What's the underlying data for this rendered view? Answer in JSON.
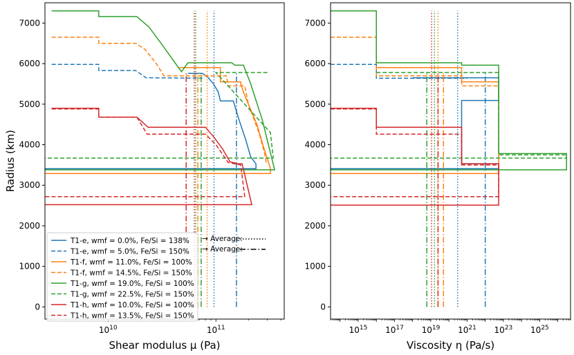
{
  "chart_data": [
    {
      "type": "line",
      "panel": "left",
      "xlabel": "Shear modulus μ (Pa)",
      "ylabel": "Radius (km)",
      "xscale": "log",
      "xlim": [
        2600000000.0,
        430000000000.0
      ],
      "ylim": [
        -300,
        7500
      ],
      "x_ticks": [
        {
          "value": 10000000000.0,
          "label": "10",
          "sup": "10"
        },
        {
          "value": 100000000000.0,
          "label": "10",
          "sup": "11"
        }
      ],
      "y_ticks": [
        0,
        1000,
        2000,
        3000,
        4000,
        5000,
        6000,
        7000
      ],
      "grid": false,
      "legend_position": "lower-left",
      "series": [
        {
          "name": "T1-e, wmf = 0.0%, Fe/Si = 138%",
          "color": "#1f77b4",
          "dash": "solid",
          "points": [
            [
              2000000000.0,
              3410
            ],
            [
              235000000000.0,
              3410
            ],
            [
              235000000000.0,
              3530
            ],
            [
              210000000000.0,
              3700
            ],
            [
              190000000000.0,
              4100
            ],
            [
              160000000000.0,
              4700
            ],
            [
              145000000000.0,
              5080
            ],
            [
              110000000000.0,
              5080
            ],
            [
              105000000000.0,
              5300
            ],
            [
              95000000000.0,
              5500
            ],
            [
              85000000000.0,
              5650
            ],
            [
              75000000000.0,
              5760
            ],
            [
              55000000000.0,
              5760
            ]
          ],
          "average": 96000000000.0
        },
        {
          "name": "T1-e, wmf = 5.0%, Fe/Si = 150%",
          "color": "#1f77b4",
          "dash": "dashed",
          "points": [
            [
              3000000000.0,
              5980
            ],
            [
              8200000000.0,
              5980
            ],
            [
              8200000000.0,
              5830
            ],
            [
              18000000000.0,
              5830
            ],
            [
              22500000000.0,
              5650
            ],
            [
              75000000000.0,
              5640
            ]
          ],
          "average": 155000000000.0
        },
        {
          "name": "T1-f, wmf = 11.0%, Fe/Si = 100%",
          "color": "#ff7f0e",
          "dash": "solid",
          "points": [
            [
              2000000000.0,
              3290
            ],
            [
              320000000000.0,
              3290
            ],
            [
              320000000000.0,
              3420
            ],
            [
              280000000000.0,
              3900
            ],
            [
              240000000000.0,
              4500
            ],
            [
              200000000000.0,
              5000
            ],
            [
              180000000000.0,
              5300
            ],
            [
              170000000000.0,
              5500
            ],
            [
              170000000000.0,
              5550
            ],
            [
              110000000000.0,
              5550
            ],
            [
              110000000000.0,
              5900
            ],
            [
              48000000000.0,
              5900
            ],
            [
              45000000000.0,
              5900
            ]
          ],
          "average": 83000000000.0
        },
        {
          "name": "T1-f, wmf = 14.5%, Fe/Si = 150%",
          "color": "#ff7f0e",
          "dash": "dashed",
          "points": [
            [
              3000000000.0,
              6650
            ],
            [
              8200000000.0,
              6650
            ],
            [
              8200000000.0,
              6500
            ],
            [
              18000000000.0,
              6500
            ],
            [
              22000000000.0,
              6350
            ],
            [
              28000000000.0,
              6000
            ],
            [
              33000000000.0,
              5700
            ],
            [
              125000000000.0,
              5700
            ],
            [
              130000000000.0,
              5450
            ],
            [
              185000000000.0,
              5450
            ],
            [
              200000000000.0,
              5000
            ],
            [
              250000000000.0,
              4300
            ],
            [
              280000000000.0,
              3830
            ],
            [
              295000000000.0,
              3530
            ]
          ],
          "average": 68000000000.0
        },
        {
          "name": "T1-g, wmf = 19.0%, Fe/Si = 100%",
          "color": "#2ca02c",
          "dash": "solid",
          "points": [
            [
              3000000000.0,
              7300
            ],
            [
              8200000000.0,
              7300
            ],
            [
              8200000000.0,
              7160
            ],
            [
              18500000000.0,
              7160
            ],
            [
              24000000000.0,
              6900
            ],
            [
              32000000000.0,
              6450
            ],
            [
              45000000000.0,
              5900
            ],
            [
              48000000000.0,
              5800
            ],
            [
              55000000000.0,
              6020
            ],
            [
              140000000000.0,
              6020
            ],
            [
              150000000000.0,
              5960
            ],
            [
              180000000000.0,
              5960
            ],
            [
              210000000000.0,
              5500
            ],
            [
              270000000000.0,
              4600
            ],
            [
              320000000000.0,
              3800
            ],
            [
              350000000000.0,
              3380
            ],
            [
              2000000000.0,
              3380
            ]
          ],
          "average": 65000000000.0
        },
        {
          "name": "T1-g, wmf = 22.5%, Fe/Si = 150%",
          "color": "#2ca02c",
          "dash": "dashed",
          "points": [
            [
              300000000000.0,
              5780
            ],
            [
              100000000000.0,
              5780
            ],
            [
              320000000000.0,
              4300
            ],
            [
              340000000000.0,
              3670
            ],
            [
              2000000000.0,
              3670
            ]
          ],
          "average": 73000000000.0
        },
        {
          "name": "T1-h, wmf = 10.0%, Fe/Si = 100%",
          "color": "#d62728",
          "dash": "solid",
          "points": [
            [
              3000000000.0,
              4900
            ],
            [
              8200000000.0,
              4900
            ],
            [
              8200000000.0,
              4680
            ],
            [
              18500000000.0,
              4680
            ],
            [
              23500000000.0,
              4430
            ],
            [
              80000000000.0,
              4430
            ],
            [
              95000000000.0,
              4200
            ],
            [
              115000000000.0,
              3900
            ],
            [
              135000000000.0,
              3580
            ],
            [
              160000000000.0,
              3530
            ],
            [
              175000000000.0,
              3530
            ],
            [
              215000000000.0,
              2520
            ],
            [
              2000000000.0,
              2520
            ]
          ],
          "average": 63000000000.0
        },
        {
          "name": "T1-h, wmf = 13.5%, Fe/Si = 150%",
          "color": "#d62728",
          "dash": "dashed",
          "points": [
            [
              3000000000.0,
              4880
            ],
            [
              8200000000.0,
              4880
            ],
            [
              8200000000.0,
              4680
            ],
            [
              18500000000.0,
              4680
            ],
            [
              23000000000.0,
              4260
            ],
            [
              80000000000.0,
              4260
            ],
            [
              100000000000.0,
              4000
            ],
            [
              130000000000.0,
              3560
            ],
            [
              170000000000.0,
              3500
            ],
            [
              185000000000.0,
              2720
            ],
            [
              2000000000.0,
              2720
            ]
          ],
          "average": 53000000000.0
        }
      ],
      "average_legend": [
        {
          "label": "Average:",
          "dash": "dotted"
        },
        {
          "label": "Average:",
          "dash": "dashdot"
        }
      ]
    },
    {
      "type": "line",
      "panel": "right",
      "xlabel": "Viscosity η (Pa/s)",
      "ylabel": "",
      "xscale": "log",
      "xlim": [
        30000000000000.0,
        5e+26
      ],
      "ylim": [
        -300,
        7500
      ],
      "x_ticks": [
        {
          "value": 1000000000000000.0,
          "label": "10",
          "sup": "15"
        },
        {
          "value": 1e+17,
          "label": "10",
          "sup": "17"
        },
        {
          "value": 1e+19,
          "label": "10",
          "sup": "19"
        },
        {
          "value": 1e+21,
          "label": "10",
          "sup": "21"
        },
        {
          "value": 1e+23,
          "label": "10",
          "sup": "23"
        },
        {
          "value": 1e+25,
          "label": "10",
          "sup": "25"
        }
      ],
      "y_ticks": [
        0,
        1000,
        2000,
        3000,
        4000,
        5000,
        6000,
        7000
      ],
      "grid": false,
      "series": [
        {
          "name": "T1-e, wmf = 0.0%, Fe/Si = 138%",
          "color": "#1f77b4",
          "dash": "solid",
          "points": [
            [
              10000000000000.0,
              3410
            ],
            [
              5.5e+22,
              3410
            ],
            [
              5.5e+22,
              3530
            ],
            [
              5e+20,
              3530
            ],
            [
              5e+20,
              5090
            ],
            [
              5.5e+22,
              5090
            ],
            [
              5.5e+22,
              5650
            ],
            [
              1e+18,
              5650
            ]
          ],
          "average": 3e+20
        },
        {
          "name": "T1-e, wmf = 5.0%, Fe/Si = 150%",
          "color": "#1f77b4",
          "dash": "dashed",
          "points": [
            [
              10000000000000.0,
              5980
            ],
            [
              1e+16,
              5980
            ],
            [
              1e+16,
              5640
            ],
            [
              1e+21,
              5640
            ]
          ],
          "average": 1e+22
        },
        {
          "name": "T1-f, wmf = 11.0%, Fe/Si = 100%",
          "color": "#ff7f0e",
          "dash": "solid",
          "points": [
            [
              10000000000000.0,
              3290
            ],
            [
              5.5e+22,
              3290
            ],
            [
              5.5e+22,
              5550
            ],
            [
              5e+20,
              5550
            ],
            [
              5e+20,
              5900
            ],
            [
              1e+16,
              5900
            ]
          ],
          "average": 2.5e+19
        },
        {
          "name": "T1-f, wmf = 14.5%, Fe/Si = 150%",
          "color": "#ff7f0e",
          "dash": "dashed",
          "points": [
            [
              10000000000000.0,
              6650
            ],
            [
              1e+16,
              6650
            ],
            [
              1e+16,
              5700
            ],
            [
              5e+20,
              5700
            ],
            [
              5e+20,
              5450
            ],
            [
              5.5e+22,
              5450
            ]
          ],
          "average": 5e+19
        },
        {
          "name": "T1-g, wmf = 19.0%, Fe/Si = 100%",
          "color": "#2ca02c",
          "dash": "solid",
          "points": [
            [
              10000000000000.0,
              7300
            ],
            [
              1e+16,
              7300
            ],
            [
              1e+16,
              6020
            ],
            [
              5e+20,
              6020
            ],
            [
              5e+20,
              5960
            ],
            [
              5.5e+22,
              5960
            ],
            [
              5.5e+22,
              3780
            ],
            [
              3e+26,
              3780
            ],
            [
              3e+26,
              3380
            ],
            [
              10000000000000.0,
              3380
            ]
          ],
          "average": 1.6e+19
        },
        {
          "name": "T1-g, wmf = 22.5%, Fe/Si = 150%",
          "color": "#2ca02c",
          "dash": "dashed",
          "points": [
            [
              1e+16,
              5780
            ],
            [
              5e+20,
              5780
            ],
            [
              5.5e+22,
              5780
            ],
            [
              5.5e+22,
              3750
            ],
            [
              3e+26,
              3750
            ],
            [
              3e+26,
              3670
            ],
            [
              10000000000000.0,
              3670
            ]
          ],
          "average": 6e+18
        },
        {
          "name": "T1-h, wmf = 10.0%, Fe/Si = 100%",
          "color": "#d62728",
          "dash": "solid",
          "points": [
            [
              10000000000000.0,
              4900
            ],
            [
              1e+16,
              4900
            ],
            [
              1e+16,
              4430
            ],
            [
              5e+20,
              4430
            ],
            [
              5e+20,
              3530
            ],
            [
              5.5e+22,
              3530
            ],
            [
              5.5e+22,
              2510
            ],
            [
              10000000000000.0,
              2510
            ]
          ],
          "average": 1.1e+19
        },
        {
          "name": "T1-h, wmf = 13.5%, Fe/Si = 150%",
          "color": "#d62728",
          "dash": "dashed",
          "points": [
            [
              10000000000000.0,
              4880
            ],
            [
              1e+16,
              4880
            ],
            [
              1e+16,
              4260
            ],
            [
              5e+20,
              4260
            ],
            [
              5e+20,
              3500
            ],
            [
              5.5e+22,
              3500
            ],
            [
              5.5e+22,
              2720
            ],
            [
              10000000000000.0,
              2720
            ]
          ],
          "average": 2.5e+19
        }
      ]
    }
  ]
}
